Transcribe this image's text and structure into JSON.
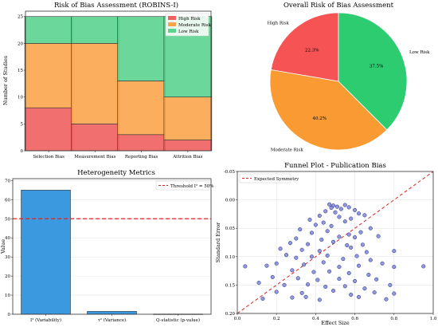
{
  "colors": {
    "high": "#f0605f",
    "moderate": "#f9a54c",
    "low": "#5cd38f",
    "pie_high": "#f65454",
    "pie_moderate": "#f99a32",
    "pie_low": "#2ecc71",
    "hetero_bar": "#3b99e0",
    "threshold": "#d62728",
    "funnel_point_fill": "#7f86d3",
    "funnel_point_edge": "#1f2a8a",
    "symmetry_line": "#d62728"
  },
  "chart_data": [
    {
      "type": "bar",
      "stacked": true,
      "title": "Risk of Bias Assessment (ROBINS-I)",
      "xlabel": "",
      "ylabel": "Number of Studies",
      "ylim": [
        0,
        26
      ],
      "yticks": [
        "0",
        "5",
        "10",
        "15",
        "20",
        "25"
      ],
      "grid": true,
      "legend": "top-right",
      "categories": [
        "Selection Bias",
        "Measurement Bias",
        "Reporting Bias",
        "Attrition Bias"
      ],
      "series": [
        {
          "name": "High Risk",
          "values": [
            8,
            5,
            3,
            2
          ]
        },
        {
          "name": "Moderate Risk",
          "values": [
            12,
            15,
            10,
            8
          ]
        },
        {
          "name": "Low Risk",
          "values": [
            5,
            5,
            12,
            15
          ]
        }
      ]
    },
    {
      "type": "pie",
      "title": "Overall Risk of Bias Assessment",
      "labels": [
        "High Risk",
        "Moderate Risk",
        "Low Risk"
      ],
      "values": [
        22.3,
        40.2,
        37.5
      ],
      "value_labels": [
        "22.3%",
        "40.2%",
        "37.5%"
      ]
    },
    {
      "type": "bar",
      "title": "Heterogeneity Metrics",
      "xlabel": "",
      "ylabel": "Value",
      "ylim": [
        0,
        71
      ],
      "yticks": [
        "0",
        "10",
        "20",
        "30",
        "40",
        "50",
        "60",
        "70"
      ],
      "grid": true,
      "legend": "top-right",
      "categories": [
        "I² (Variability)",
        "τ² (Variance)",
        "Q-statistic (p-value)"
      ],
      "values": [
        65,
        1.5,
        0.1
      ],
      "threshold": {
        "name": "Threshold I² = 50%",
        "value": 50
      }
    },
    {
      "type": "scatter",
      "title": "Funnel Plot - Publication Bias",
      "xlabel": "Effect Size",
      "ylabel": "Standard Error",
      "xlim": [
        0.0,
        1.0
      ],
      "ylim": [
        0.2,
        -0.05
      ],
      "y_inverted": true,
      "xticks": [
        "0.0",
        "0.2",
        "0.4",
        "0.6",
        "0.8",
        "1.0"
      ],
      "yticks": [
        "-0.05",
        "0.00",
        "0.05",
        "0.10",
        "0.15",
        "0.20"
      ],
      "grid": true,
      "legend": "top-left",
      "reference_line": {
        "name": "Expected Symmetry",
        "points": [
          [
            0.0,
            0.2
          ],
          [
            1.0,
            -0.05
          ]
        ]
      },
      "points": [
        [
          0.47,
          0.008
        ],
        [
          0.49,
          0.01
        ],
        [
          0.51,
          0.012
        ],
        [
          0.48,
          0.014
        ],
        [
          0.53,
          0.016
        ],
        [
          0.55,
          0.009
        ],
        [
          0.57,
          0.013
        ],
        [
          0.45,
          0.02
        ],
        [
          0.5,
          0.022
        ],
        [
          0.6,
          0.018
        ],
        [
          0.42,
          0.028
        ],
        [
          0.62,
          0.024
        ],
        [
          0.37,
          0.035
        ],
        [
          0.52,
          0.03
        ],
        [
          0.58,
          0.033
        ],
        [
          0.65,
          0.027
        ],
        [
          0.4,
          0.044
        ],
        [
          0.44,
          0.04
        ],
        [
          0.55,
          0.038
        ],
        [
          0.48,
          0.046
        ],
        [
          0.32,
          0.052
        ],
        [
          0.68,
          0.05
        ],
        [
          0.38,
          0.058
        ],
        [
          0.46,
          0.055
        ],
        [
          0.57,
          0.061
        ],
        [
          0.63,
          0.057
        ],
        [
          0.3,
          0.068
        ],
        [
          0.43,
          0.07
        ],
        [
          0.52,
          0.065
        ],
        [
          0.6,
          0.066
        ],
        [
          0.72,
          0.064
        ],
        [
          0.27,
          0.076
        ],
        [
          0.36,
          0.078
        ],
        [
          0.49,
          0.074
        ],
        [
          0.56,
          0.08
        ],
        [
          0.64,
          0.079
        ],
        [
          0.22,
          0.086
        ],
        [
          0.33,
          0.088
        ],
        [
          0.42,
          0.09
        ],
        [
          0.58,
          0.084
        ],
        [
          0.66,
          0.092
        ],
        [
          0.8,
          0.09
        ],
        [
          0.25,
          0.097
        ],
        [
          0.3,
          0.102
        ],
        [
          0.38,
          0.1
        ],
        [
          0.46,
          0.098
        ],
        [
          0.54,
          0.104
        ],
        [
          0.61,
          0.099
        ],
        [
          0.68,
          0.106
        ],
        [
          0.2,
          0.112
        ],
        [
          0.34,
          0.114
        ],
        [
          0.44,
          0.11
        ],
        [
          0.52,
          0.118
        ],
        [
          0.62,
          0.116
        ],
        [
          0.74,
          0.112
        ],
        [
          0.04,
          0.117
        ],
        [
          0.15,
          0.116
        ],
        [
          0.28,
          0.124
        ],
        [
          0.39,
          0.127
        ],
        [
          0.47,
          0.126
        ],
        [
          0.57,
          0.129
        ],
        [
          0.67,
          0.132
        ],
        [
          0.8,
          0.118
        ],
        [
          0.95,
          0.117
        ],
        [
          0.18,
          0.136
        ],
        [
          0.31,
          0.138
        ],
        [
          0.41,
          0.141
        ],
        [
          0.52,
          0.139
        ],
        [
          0.6,
          0.143
        ],
        [
          0.71,
          0.14
        ],
        [
          0.11,
          0.146
        ],
        [
          0.24,
          0.15
        ],
        [
          0.36,
          0.149
        ],
        [
          0.45,
          0.153
        ],
        [
          0.55,
          0.152
        ],
        [
          0.65,
          0.156
        ],
        [
          0.78,
          0.15
        ],
        [
          0.2,
          0.162
        ],
        [
          0.33,
          0.164
        ],
        [
          0.49,
          0.16
        ],
        [
          0.58,
          0.167
        ],
        [
          0.7,
          0.163
        ],
        [
          0.8,
          0.165
        ],
        [
          0.28,
          0.172
        ],
        [
          0.42,
          0.176
        ],
        [
          0.62,
          0.171
        ],
        [
          0.13,
          0.174
        ],
        [
          0.76,
          0.175
        ],
        [
          0.35,
          0.171
        ]
      ]
    }
  ]
}
